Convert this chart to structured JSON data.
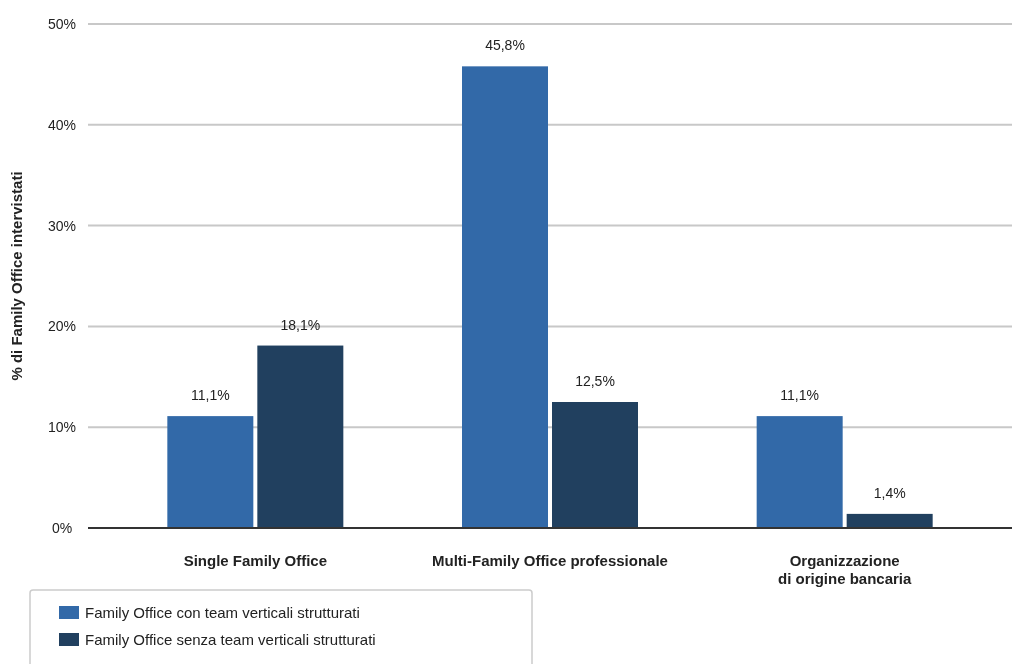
{
  "chart_data": {
    "type": "bar",
    "ylabel": "% di Family Office intervistati",
    "categories": [
      "Single Family Office",
      "Multi-Family Office professionale",
      "Organizzazione\ndi origine bancaria"
    ],
    "series": [
      {
        "name": "Family Office con team verticali strutturati",
        "color": "#3269a8",
        "values": [
          11.1,
          45.8,
          11.1
        ],
        "value_labels": [
          "11,1%",
          "45,8%",
          "11,1%"
        ]
      },
      {
        "name": "Family Office senza team verticali strutturati",
        "color": "#21405f",
        "values": [
          18.1,
          12.5,
          1.4
        ],
        "value_labels": [
          "18,1%",
          "12,5%",
          "1,4%"
        ]
      }
    ],
    "ylim": [
      0,
      50
    ],
    "yticks": [
      {
        "value": 0,
        "label": "0%"
      },
      {
        "value": 10,
        "label": "10%"
      },
      {
        "value": 20,
        "label": "20%"
      },
      {
        "value": 30,
        "label": "30%"
      },
      {
        "value": 40,
        "label": "40%"
      },
      {
        "value": 50,
        "label": "50%"
      }
    ],
    "grid": "y",
    "legend": "bottom left"
  }
}
